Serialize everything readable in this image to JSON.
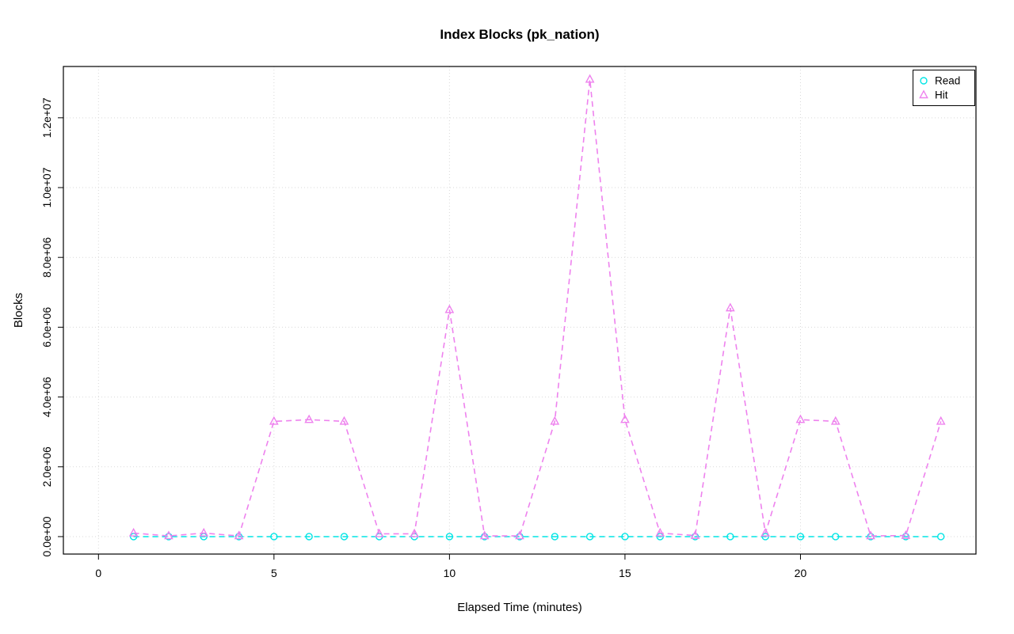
{
  "chart_data": {
    "type": "line",
    "title": "Index Blocks (pk_nation)",
    "xlabel": "Elapsed Time (minutes)",
    "ylabel": "Blocks",
    "grid": true,
    "grid_color": "#d9d9d9",
    "legend_position": "top-right",
    "xlim": [
      -1,
      25
    ],
    "ylim": [
      -500000,
      13470000
    ],
    "xticks": [
      0,
      5,
      10,
      15,
      20
    ],
    "xtick_labels": [
      "0",
      "5",
      "10",
      "15",
      "20"
    ],
    "yticks": [
      0,
      2000000,
      4000000,
      6000000,
      8000000,
      10000000,
      12000000
    ],
    "ytick_labels": [
      "0.0e+00",
      "2.0e+06",
      "4.0e+06",
      "6.0e+06",
      "8.0e+06",
      "1.0e+07",
      "1.2e+07"
    ],
    "x": [
      1,
      2,
      3,
      4,
      5,
      6,
      7,
      8,
      9,
      10,
      11,
      12,
      13,
      14,
      15,
      16,
      17,
      18,
      19,
      20,
      21,
      22,
      23,
      24
    ],
    "series": [
      {
        "name": "Read",
        "color": "#00e5e5",
        "marker": "circle",
        "values": [
          0,
          0,
          0,
          0,
          0,
          0,
          0,
          0,
          0,
          0,
          0,
          0,
          0,
          0,
          0,
          0,
          0,
          0,
          0,
          0,
          0,
          0,
          0,
          0
        ]
      },
      {
        "name": "Hit",
        "color": "#ee82ee",
        "marker": "triangle",
        "values": [
          100000,
          20000,
          100000,
          20000,
          3300000,
          3350000,
          3300000,
          80000,
          80000,
          6500000,
          20000,
          20000,
          3300000,
          13100000,
          3350000,
          100000,
          30000,
          6550000,
          100000,
          3350000,
          3300000,
          20000,
          30000,
          3300000
        ]
      }
    ]
  }
}
